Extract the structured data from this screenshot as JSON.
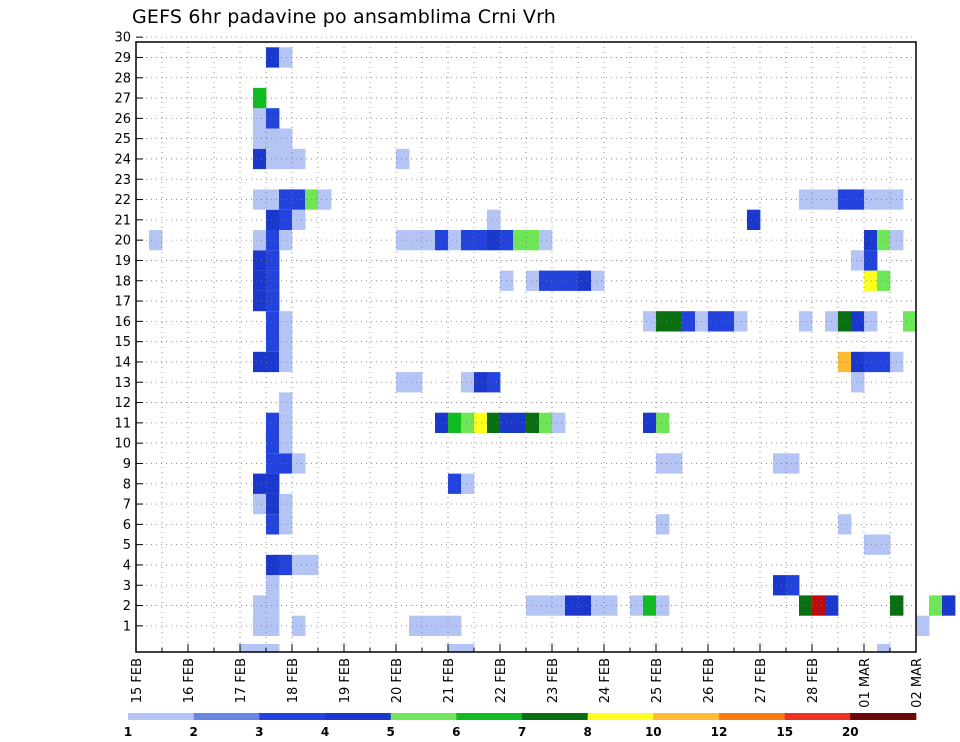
{
  "chart_data": {
    "type": "heatmap",
    "title": "GEFS 6hr padavine po ansamblima Crni Vrh",
    "xlabel": "",
    "ylabel": "",
    "x_ticks": [
      "15 FEB",
      "16 FEB",
      "17 FEB",
      "18 FEB",
      "19 FEB",
      "20 FEB",
      "21 FEB",
      "22 FEB",
      "23 FEB",
      "24 FEB",
      "25 FEB",
      "26 FEB",
      "27 FEB",
      "28 FEB",
      "01 MAR",
      "02 MAR"
    ],
    "y_ticks": [
      "1",
      "2",
      "3",
      "4",
      "5",
      "6",
      "7",
      "8",
      "9",
      "10",
      "11",
      "12",
      "13",
      "14",
      "15",
      "16",
      "17",
      "18",
      "19",
      "20",
      "21",
      "22",
      "23",
      "24",
      "25",
      "26",
      "27",
      "28",
      "29",
      "30"
    ],
    "xlim_days": [
      0,
      15
    ],
    "ylim_members": [
      0,
      30
    ],
    "time_step_hours": 6,
    "grid": true,
    "legend": {
      "placement": "bottom",
      "labels": [
        "1",
        "2",
        "3",
        "4",
        "5",
        "6",
        "7",
        "8",
        "10",
        "12",
        "15",
        "20"
      ],
      "colors": [
        "#b4c4f4",
        "#6688e4",
        "#2244dd",
        "#1a38cc",
        "#6ee657",
        "#11bb22",
        "#0a6e12",
        "#ffff20",
        "#ffbb33",
        "#ff7b10",
        "#ee3322",
        "#bb0e0e",
        "#6b0808"
      ]
    },
    "cells": [
      {
        "m": 1,
        "s": [
          [
            9,
            10,
            0
          ],
          [
            10,
            11,
            0
          ],
          [
            12,
            13,
            0
          ],
          [
            21,
            22,
            0
          ],
          [
            22,
            23,
            0
          ],
          [
            23,
            24,
            0
          ],
          [
            24,
            25,
            0
          ],
          [
            60,
            61,
            0
          ]
        ]
      },
      {
        "m": 2,
        "s": [
          [
            9,
            10,
            0
          ],
          [
            9,
            11,
            0
          ],
          [
            30,
            31,
            0
          ],
          [
            31,
            32,
            0
          ],
          [
            32,
            33,
            0
          ],
          [
            33,
            34,
            3
          ],
          [
            34,
            35,
            3
          ],
          [
            35,
            36,
            0
          ],
          [
            36,
            37,
            0
          ],
          [
            38,
            39,
            0
          ],
          [
            39,
            40,
            5
          ],
          [
            40,
            41,
            0
          ],
          [
            51,
            52,
            6
          ],
          [
            52,
            53,
            11
          ],
          [
            53,
            54,
            3
          ],
          [
            58,
            59,
            6
          ],
          [
            61,
            62,
            4
          ],
          [
            62,
            63,
            3
          ],
          [
            70,
            71,
            0
          ],
          [
            71,
            72,
            4
          ]
        ]
      },
      {
        "m": 3,
        "s": [
          [
            10,
            11,
            0
          ],
          [
            49,
            50,
            3
          ],
          [
            50,
            51,
            2
          ],
          [
            64,
            65,
            0
          ]
        ]
      },
      {
        "m": 4,
        "s": [
          [
            10,
            11,
            3
          ],
          [
            11,
            12,
            2
          ],
          [
            12,
            13,
            0
          ],
          [
            13,
            14,
            0
          ]
        ]
      },
      {
        "m": 5,
        "s": [
          [
            56,
            57,
            0
          ],
          [
            57,
            58,
            0
          ],
          [
            67,
            68,
            3
          ]
        ]
      },
      {
        "m": 6,
        "s": [
          [
            10,
            11,
            2
          ],
          [
            11,
            12,
            0
          ],
          [
            40,
            41,
            0
          ],
          [
            54,
            55,
            0
          ]
        ]
      },
      {
        "m": 7,
        "s": [
          [
            9,
            10,
            0
          ],
          [
            10,
            11,
            3
          ],
          [
            11,
            12,
            0
          ]
        ]
      },
      {
        "m": 8,
        "s": [
          [
            9,
            10,
            3
          ],
          [
            10,
            11,
            3
          ],
          [
            24,
            25,
            2
          ],
          [
            25,
            26,
            0
          ]
        ]
      },
      {
        "m": 9,
        "s": [
          [
            10,
            11,
            2
          ],
          [
            11,
            12,
            2
          ],
          [
            12,
            13,
            0
          ],
          [
            40,
            41,
            0
          ],
          [
            41,
            42,
            0
          ],
          [
            49,
            50,
            0
          ],
          [
            50,
            51,
            0
          ]
        ]
      },
      {
        "m": 10,
        "s": [
          [
            10,
            11,
            2
          ],
          [
            11,
            12,
            0
          ]
        ]
      },
      {
        "m": 11,
        "s": [
          [
            10,
            11,
            2
          ],
          [
            11,
            12,
            0
          ],
          [
            23,
            24,
            3
          ],
          [
            24,
            25,
            5
          ],
          [
            25,
            26,
            4
          ],
          [
            26,
            27,
            7
          ],
          [
            27,
            28,
            6
          ],
          [
            28,
            29,
            3
          ],
          [
            29,
            30,
            3
          ],
          [
            30,
            31,
            6
          ],
          [
            31,
            32,
            4
          ],
          [
            32,
            33,
            0
          ],
          [
            39,
            40,
            3
          ],
          [
            40,
            41,
            4
          ],
          [
            71,
            72,
            7
          ]
        ]
      },
      {
        "m": 12,
        "s": [
          [
            11,
            12,
            0
          ]
        ]
      },
      {
        "m": 13,
        "s": [
          [
            20,
            21,
            0
          ],
          [
            21,
            22,
            0
          ],
          [
            25,
            26,
            0
          ],
          [
            26,
            27,
            3
          ],
          [
            27,
            28,
            2
          ],
          [
            55,
            56,
            0
          ],
          [
            68,
            69,
            7
          ],
          [
            69,
            70,
            8
          ],
          [
            70,
            71,
            5
          ],
          [
            71,
            72,
            6
          ]
        ]
      },
      {
        "m": 14,
        "s": [
          [
            9,
            10,
            3
          ],
          [
            10,
            11,
            3
          ],
          [
            11,
            12,
            0
          ],
          [
            54,
            55,
            8
          ],
          [
            55,
            56,
            3
          ],
          [
            56,
            57,
            2
          ],
          [
            57,
            58,
            2
          ],
          [
            58,
            59,
            0
          ],
          [
            69,
            70,
            0
          ],
          [
            70,
            71,
            0
          ],
          [
            71,
            72,
            0
          ]
        ]
      },
      {
        "m": 15,
        "s": [
          [
            10,
            11,
            2
          ],
          [
            11,
            12,
            0
          ]
        ]
      },
      {
        "m": 16,
        "s": [
          [
            10,
            11,
            2
          ],
          [
            11,
            12,
            0
          ],
          [
            39,
            40,
            0
          ],
          [
            40,
            41,
            6
          ],
          [
            41,
            42,
            6
          ],
          [
            42,
            43,
            2
          ],
          [
            43,
            44,
            0
          ],
          [
            44,
            45,
            2
          ],
          [
            45,
            46,
            2
          ],
          [
            46,
            47,
            0
          ],
          [
            51,
            52,
            0
          ],
          [
            53,
            54,
            0
          ],
          [
            54,
            55,
            6
          ],
          [
            55,
            56,
            3
          ],
          [
            56,
            57,
            0
          ],
          [
            59,
            60,
            4
          ]
        ]
      },
      {
        "m": 17,
        "s": [
          [
            9,
            10,
            3
          ],
          [
            10,
            11,
            2
          ]
        ]
      },
      {
        "m": 18,
        "s": [
          [
            9,
            10,
            3
          ],
          [
            10,
            11,
            2
          ],
          [
            28,
            29,
            0
          ],
          [
            30,
            31,
            0
          ],
          [
            31,
            32,
            2
          ],
          [
            32,
            33,
            2
          ],
          [
            33,
            34,
            2
          ],
          [
            34,
            35,
            3
          ],
          [
            35,
            36,
            0
          ],
          [
            56,
            57,
            7
          ],
          [
            57,
            58,
            4
          ]
        ]
      },
      {
        "m": 19,
        "s": [
          [
            9,
            10,
            3
          ],
          [
            10,
            11,
            2
          ],
          [
            55,
            56,
            0
          ],
          [
            56,
            57,
            2
          ]
        ]
      },
      {
        "m": 20,
        "s": [
          [
            1,
            2,
            0
          ],
          [
            9,
            10,
            0
          ],
          [
            10,
            11,
            2
          ],
          [
            11,
            12,
            0
          ],
          [
            20,
            21,
            0
          ],
          [
            21,
            22,
            0
          ],
          [
            22,
            23,
            0
          ],
          [
            23,
            24,
            2
          ],
          [
            24,
            25,
            0
          ],
          [
            25,
            26,
            2
          ],
          [
            26,
            27,
            2
          ],
          [
            27,
            28,
            3
          ],
          [
            28,
            29,
            2
          ],
          [
            29,
            30,
            4
          ],
          [
            30,
            31,
            4
          ],
          [
            31,
            32,
            0
          ],
          [
            56,
            57,
            3
          ],
          [
            57,
            58,
            4
          ],
          [
            58,
            59,
            0
          ]
        ]
      },
      {
        "m": 21,
        "s": [
          [
            10,
            11,
            3
          ],
          [
            11,
            12,
            2
          ],
          [
            12,
            13,
            0
          ],
          [
            27,
            28,
            0
          ],
          [
            47,
            48,
            3
          ],
          [
            64,
            65,
            4
          ]
        ]
      },
      {
        "m": 22,
        "s": [
          [
            9,
            10,
            0
          ],
          [
            10,
            11,
            0
          ],
          [
            11,
            12,
            2
          ],
          [
            12,
            13,
            2
          ],
          [
            13,
            14,
            4
          ],
          [
            14,
            15,
            0
          ],
          [
            51,
            52,
            0
          ],
          [
            52,
            53,
            0
          ],
          [
            53,
            54,
            0
          ],
          [
            54,
            55,
            2
          ],
          [
            55,
            56,
            2
          ],
          [
            56,
            57,
            0
          ],
          [
            57,
            58,
            0
          ],
          [
            58,
            59,
            0
          ],
          [
            64,
            65,
            0
          ],
          [
            67,
            68,
            0
          ],
          [
            68,
            69,
            4
          ],
          [
            69,
            70,
            4
          ],
          [
            70,
            71,
            4
          ],
          [
            71,
            72,
            0
          ]
        ]
      },
      {
        "m": 24,
        "s": [
          [
            9,
            10,
            3
          ],
          [
            10,
            11,
            0
          ],
          [
            11,
            12,
            0
          ],
          [
            12,
            13,
            0
          ],
          [
            20,
            21,
            0
          ]
        ]
      },
      {
        "m": 25,
        "s": [
          [
            9,
            10,
            0
          ],
          [
            10,
            11,
            0
          ],
          [
            11,
            12,
            0
          ]
        ]
      },
      {
        "m": 26,
        "s": [
          [
            9,
            10,
            0
          ],
          [
            10,
            11,
            2
          ]
        ]
      },
      {
        "m": 27,
        "s": [
          [
            9,
            10,
            5
          ]
        ]
      },
      {
        "m": 29,
        "s": [
          [
            10,
            11,
            3
          ],
          [
            11,
            12,
            0
          ]
        ]
      },
      {
        "m": 0,
        "s": [
          [
            8,
            9,
            0
          ],
          [
            9,
            10,
            0
          ],
          [
            10,
            11,
            0
          ],
          [
            24,
            25,
            0
          ],
          [
            25,
            26,
            0
          ],
          [
            57,
            58,
            0
          ]
        ]
      }
    ]
  }
}
